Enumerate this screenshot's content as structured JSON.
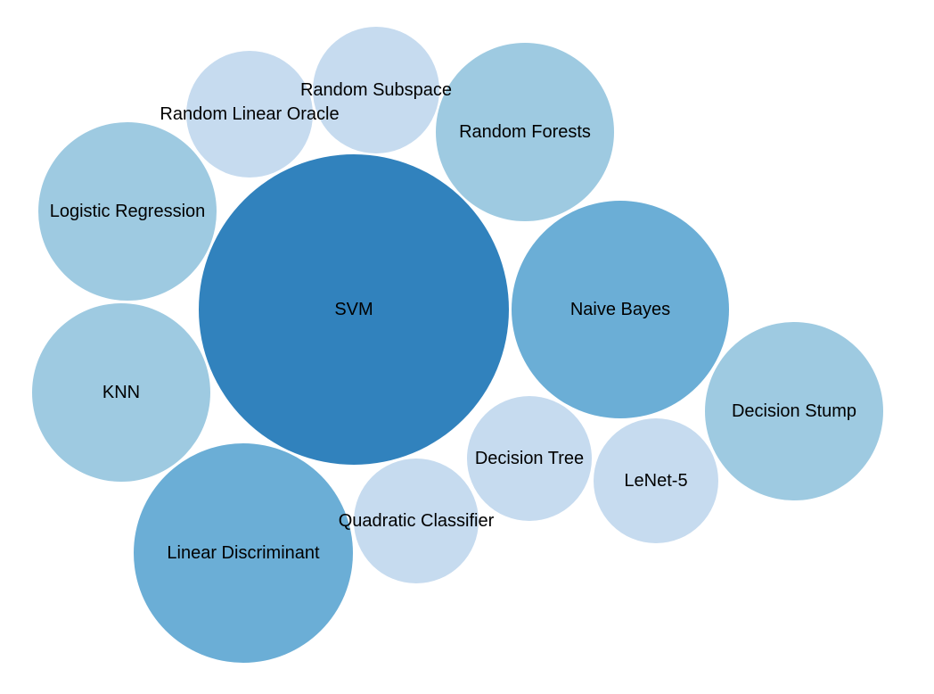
{
  "chart_data": {
    "type": "bubble",
    "colors": {
      "level_1": "#c6dbef",
      "level_2": "#9ecae1",
      "level_3": "#6baed6",
      "level_4": "#3182bd"
    },
    "bubbles": [
      {
        "label": "SVM",
        "level": "level_4"
      },
      {
        "label": "Naive Bayes",
        "level": "level_3"
      },
      {
        "label": "Linear Discriminant",
        "level": "level_3"
      },
      {
        "label": "Random Forests",
        "level": "level_2"
      },
      {
        "label": "Logistic Regression",
        "level": "level_2"
      },
      {
        "label": "KNN",
        "level": "level_2"
      },
      {
        "label": "Decision Stump",
        "level": "level_2"
      },
      {
        "label": "Random Linear Oracle",
        "level": "level_1"
      },
      {
        "label": "Random Subspace",
        "level": "level_1"
      },
      {
        "label": "Decision Tree",
        "level": "level_1"
      },
      {
        "label": "LeNet-5",
        "level": "level_1"
      },
      {
        "label": "Quadratic Classifier",
        "level": "level_1"
      }
    ]
  }
}
